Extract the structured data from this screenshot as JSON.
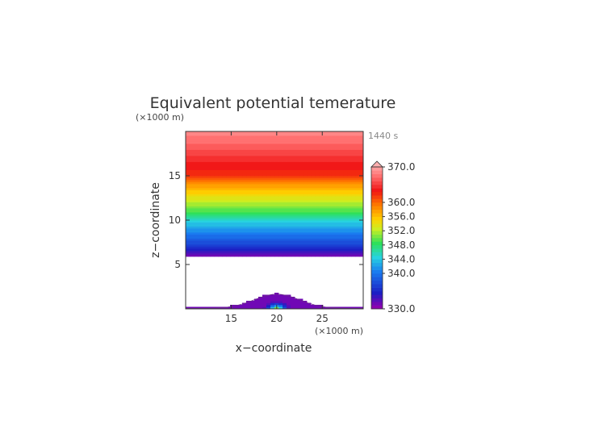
{
  "chart_data": {
    "type": "heatmap",
    "title": "Equivalent potential temerature",
    "xlabel": "x−coordinate",
    "ylabel": "z−coordinate",
    "x_unit": "(×1000 m)",
    "y_unit": "(×1000 m)",
    "time_label": "1440 s",
    "xlim": [
      10.0,
      29.5
    ],
    "ylim": [
      0,
      20
    ],
    "x_ticks": [
      "15",
      "20",
      "25"
    ],
    "y_ticks": [
      "5",
      "10",
      "15"
    ],
    "x_tick_values": [
      15,
      20,
      25
    ],
    "y_tick_values": [
      5,
      10,
      15
    ],
    "colorbar": {
      "min": 330.0,
      "max": 370.0,
      "tick_labels": [
        "370.0",
        "360.0",
        "356.0",
        "352.0",
        "348.0",
        "344.0",
        "340.0",
        "330.0"
      ],
      "tick_values": [
        370,
        360,
        356,
        352,
        348,
        344,
        340,
        330
      ],
      "extend": "max"
    },
    "profile": {
      "z_km": [
        5.9,
        7.0,
        8.0,
        9.0,
        10.0,
        11.0,
        12.0,
        13.0,
        14.0,
        15.0,
        19.5
      ],
      "theta_e_K": [
        331,
        336,
        339,
        342,
        345,
        349,
        352,
        355,
        358,
        362,
        368
      ]
    },
    "mountain": {
      "center_x": 20,
      "peak_height": 1.6,
      "half_width": 3.5
    },
    "missing_band_z": [
      0.5,
      5.9
    ]
  }
}
